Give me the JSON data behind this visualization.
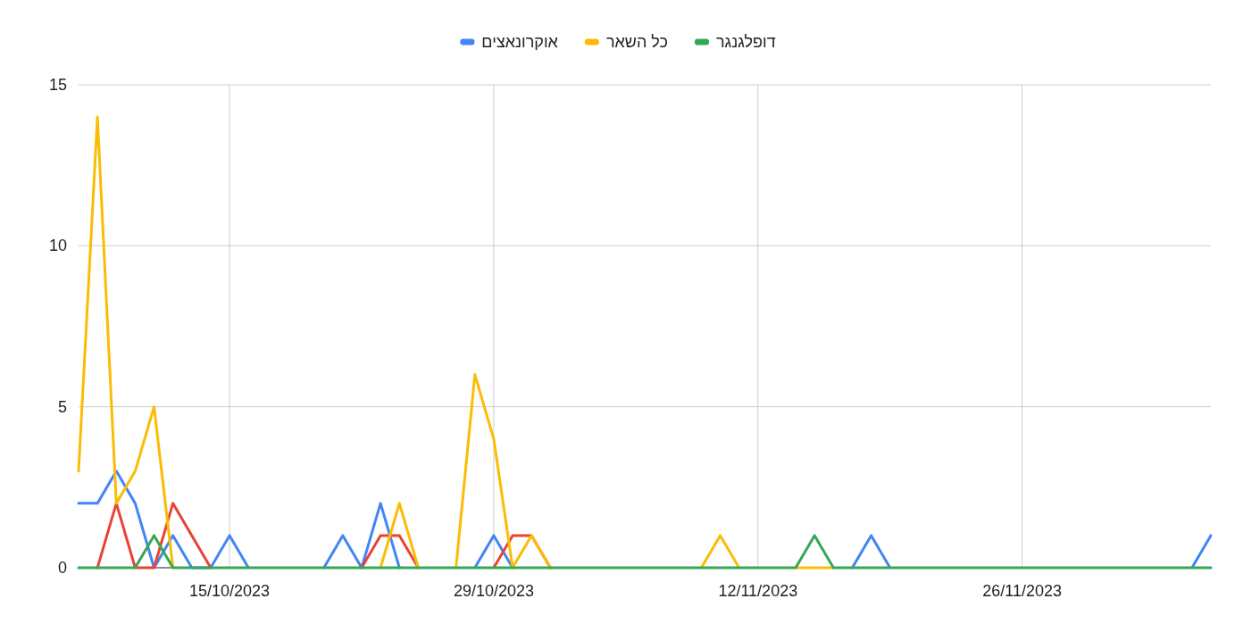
{
  "chart_data": {
    "type": "line",
    "x": [
      "2023-10-07",
      "2023-10-08",
      "2023-10-09",
      "2023-10-10",
      "2023-10-11",
      "2023-10-12",
      "2023-10-13",
      "2023-10-14",
      "2023-10-15",
      "2023-10-16",
      "2023-10-17",
      "2023-10-18",
      "2023-10-19",
      "2023-10-20",
      "2023-10-21",
      "2023-10-22",
      "2023-10-23",
      "2023-10-24",
      "2023-10-25",
      "2023-10-26",
      "2023-10-27",
      "2023-10-28",
      "2023-10-29",
      "2023-10-30",
      "2023-10-31",
      "2023-11-01",
      "2023-11-02",
      "2023-11-03",
      "2023-11-04",
      "2023-11-05",
      "2023-11-06",
      "2023-11-07",
      "2023-11-08",
      "2023-11-09",
      "2023-11-10",
      "2023-11-11",
      "2023-11-12",
      "2023-11-13",
      "2023-11-14",
      "2023-11-15",
      "2023-11-16",
      "2023-11-17",
      "2023-11-18",
      "2023-11-19",
      "2023-11-20",
      "2023-11-21",
      "2023-11-22",
      "2023-11-23",
      "2023-11-24",
      "2023-11-25",
      "2023-11-26",
      "2023-11-27",
      "2023-11-28",
      "2023-11-29",
      "2023-11-30",
      "2023-12-01",
      "2023-12-02",
      "2023-12-03",
      "2023-12-04",
      "2023-12-05",
      "2023-12-06"
    ],
    "series": [
      {
        "name": "אוקרונאצים",
        "color": "#4285f4",
        "values": [
          2,
          2,
          3,
          2,
          0,
          1,
          0,
          0,
          1,
          0,
          null,
          null,
          null,
          0,
          1,
          0,
          2,
          0,
          null,
          null,
          null,
          0,
          1,
          0,
          null,
          null,
          null,
          null,
          null,
          null,
          null,
          null,
          null,
          null,
          null,
          null,
          null,
          null,
          null,
          null,
          null,
          0,
          1,
          0,
          null,
          null,
          null,
          null,
          null,
          null,
          null,
          null,
          null,
          null,
          null,
          null,
          null,
          null,
          null,
          0,
          1
        ]
      },
      {
        "color": "#ea4335",
        "values": [
          null,
          0,
          2,
          0,
          0,
          2,
          1,
          0,
          null,
          null,
          null,
          null,
          null,
          null,
          null,
          0,
          1,
          1,
          0,
          null,
          null,
          null,
          0,
          1,
          1,
          0,
          null,
          null,
          null,
          null,
          null,
          null,
          null,
          null,
          null,
          null,
          null,
          null,
          null,
          null,
          null,
          null,
          null,
          null,
          null,
          null,
          null,
          null,
          null,
          null,
          null,
          null,
          null,
          null,
          null,
          null,
          null,
          null,
          null,
          null,
          null
        ]
      },
      {
        "name": "כל השאר",
        "color": "#fbbc04",
        "values": [
          3,
          14,
          2,
          3,
          5,
          0,
          null,
          null,
          null,
          null,
          null,
          null,
          null,
          null,
          null,
          null,
          0,
          2,
          0,
          null,
          0,
          6,
          4,
          0,
          1,
          0,
          null,
          null,
          null,
          null,
          null,
          null,
          null,
          0,
          1,
          0,
          null,
          null,
          0,
          0,
          0,
          null,
          null,
          null,
          null,
          null,
          null,
          null,
          null,
          null,
          null,
          null,
          null,
          null,
          null,
          null,
          null,
          null,
          null,
          null,
          null
        ]
      },
      {
        "name": "דופלגנגר",
        "color": "#34a853",
        "values": [
          0,
          0,
          0,
          0,
          1,
          0,
          0,
          0,
          0,
          0,
          0,
          0,
          0,
          0,
          0,
          0,
          0,
          0,
          0,
          0,
          0,
          0,
          0,
          0,
          0,
          0,
          0,
          0,
          0,
          0,
          0,
          0,
          0,
          0,
          0,
          0,
          0,
          0,
          0,
          1,
          0,
          0,
          0,
          0,
          0,
          0,
          0,
          0,
          0,
          0,
          0,
          0,
          0,
          0,
          0,
          0,
          0,
          0,
          0,
          0,
          0
        ]
      }
    ],
    "xlim": [
      "2023-10-07",
      "2023-12-06"
    ],
    "xticks": [
      {
        "value": "2023-10-15",
        "label": "15/10/2023"
      },
      {
        "value": "2023-10-29",
        "label": "29/10/2023"
      },
      {
        "value": "2023-11-12",
        "label": "12/11/2023"
      },
      {
        "value": "2023-11-26",
        "label": "26/11/2023"
      }
    ],
    "ylim": [
      0,
      15
    ],
    "yticks": [
      0,
      5,
      10,
      15
    ],
    "grid": true,
    "legend": "top"
  }
}
